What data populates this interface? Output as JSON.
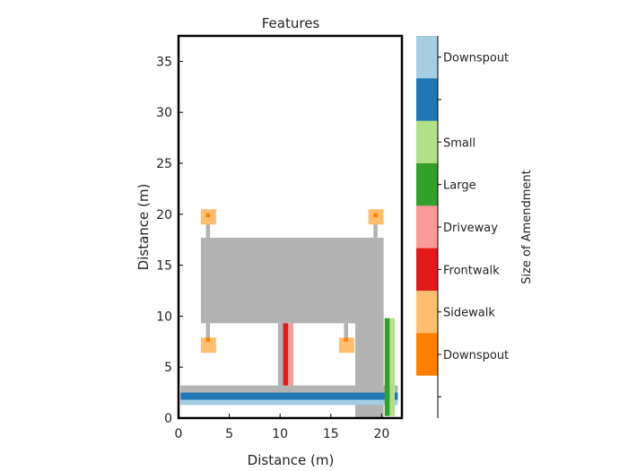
{
  "chart_data": {
    "type": "heatmap",
    "title": "Features",
    "xlabel": "Distance (m)",
    "ylabel": "Distance (m)",
    "xlim": [
      0,
      22
    ],
    "ylim": [
      0,
      37.5
    ],
    "xticks": [
      0,
      5,
      10,
      15,
      20
    ],
    "yticks": [
      0,
      5,
      10,
      15,
      20,
      25,
      30,
      35
    ],
    "grid": false,
    "colors": {
      "building": "#b3b3b3",
      "downspout_light": "#a6cee3",
      "downspout_dark": "#1f78b4",
      "small": "#b2df8a",
      "large": "#33a02c",
      "driveway": "#fb9a99",
      "frontwalk": "#e31a1c",
      "sidewalk": "#fdbf6f",
      "downspout_orange": "#ff7f00"
    },
    "features": [
      {
        "kind": "house",
        "x0": 2.2,
        "x1": 20.2,
        "y0": 9.3,
        "y1": 17.7
      },
      {
        "kind": "driveway_slab",
        "x0": 17.4,
        "x1": 20.2,
        "y0": 0,
        "y1": 9.8
      },
      {
        "kind": "road",
        "x0": 0.2,
        "x1": 21.6,
        "y0": 1.3,
        "y1": 3.2
      },
      {
        "kind": "road_stripe_light",
        "x0": 0.2,
        "x1": 21.6,
        "y0": 1.3,
        "y1": 2.0
      },
      {
        "kind": "road_stripe_dark",
        "x0": 0.2,
        "x1": 21.6,
        "y0": 1.8,
        "y1": 2.5
      },
      {
        "kind": "walk_gray",
        "x0": 9.8,
        "x1": 11.3,
        "y0": 3.2,
        "y1": 9.3
      },
      {
        "kind": "frontwalk",
        "x0": 10.3,
        "x1": 10.8,
        "y0": 3.2,
        "y1": 9.3
      },
      {
        "kind": "driveway",
        "x0": 10.8,
        "x1": 11.3,
        "y0": 3.2,
        "y1": 9.3
      },
      {
        "kind": "large",
        "x0": 20.3,
        "x1": 20.8,
        "y0": 0.2,
        "y1": 9.8
      },
      {
        "kind": "small",
        "x0": 20.8,
        "x1": 21.3,
        "y0": 0.2,
        "y1": 9.8
      },
      {
        "kind": "pipe",
        "x0": 2.7,
        "x1": 3.1,
        "y0": 17.7,
        "y1": 19.7
      },
      {
        "kind": "pipe",
        "x0": 19.2,
        "x1": 19.6,
        "y0": 17.7,
        "y1": 19.7
      },
      {
        "kind": "pipe",
        "x0": 2.7,
        "x1": 3.1,
        "y0": 7.5,
        "y1": 9.3
      },
      {
        "kind": "pipe",
        "x0": 16.3,
        "x1": 16.7,
        "y0": 7.5,
        "y1": 9.3
      },
      {
        "kind": "sidewalk_pad",
        "x0": 2.2,
        "x1": 3.7,
        "y0": 19.0,
        "y1": 20.5
      },
      {
        "kind": "sidewalk_pad",
        "x0": 18.7,
        "x1": 20.2,
        "y0": 19.0,
        "y1": 20.5
      },
      {
        "kind": "sidewalk_pad",
        "x0": 2.2,
        "x1": 3.7,
        "y0": 6.4,
        "y1": 7.9
      },
      {
        "kind": "sidewalk_pad",
        "x0": 15.8,
        "x1": 17.3,
        "y0": 6.4,
        "y1": 7.9
      },
      {
        "kind": "orange_dot",
        "x0": 2.7,
        "x1": 3.1,
        "y0": 19.7,
        "y1": 20.1
      },
      {
        "kind": "orange_dot",
        "x0": 19.2,
        "x1": 19.6,
        "y0": 19.7,
        "y1": 20.1
      },
      {
        "kind": "orange_dot",
        "x0": 2.7,
        "x1": 3.1,
        "y0": 7.5,
        "y1": 7.9
      },
      {
        "kind": "orange_dot",
        "x0": 16.3,
        "x1": 16.7,
        "y0": 7.5,
        "y1": 7.9
      }
    ],
    "colorbar": {
      "label": "Size of Amendment",
      "segments": [
        {
          "color": "#a6cee3",
          "label": "Downspout"
        },
        {
          "color": "#1f78b4",
          "label": ""
        },
        {
          "color": "#b2df8a",
          "label": "Small"
        },
        {
          "color": "#33a02c",
          "label": "Large"
        },
        {
          "color": "#fb9a99",
          "label": "Driveway"
        },
        {
          "color": "#e31a1c",
          "label": "Frontwalk"
        },
        {
          "color": "#fdbf6f",
          "label": "Sidewalk"
        },
        {
          "color": "#ff7f00",
          "label": "Downspout"
        },
        {
          "color": "#ffffff",
          "label": ""
        }
      ]
    }
  }
}
